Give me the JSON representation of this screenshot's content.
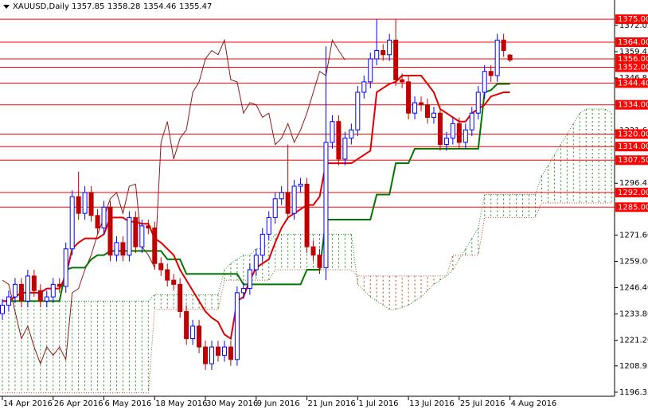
{
  "chart_data": {
    "type": "candlestick",
    "title": "XAUUSD,Daily",
    "header_values": [
      1357.85,
      1358.28,
      1354.46,
      1355.47
    ],
    "categories": [
      "14 Apr 2016",
      null,
      null,
      null,
      null,
      null,
      null,
      null,
      "26 Apr 2016",
      null,
      null,
      null,
      null,
      null,
      null,
      null,
      "6 May 2016",
      null,
      null,
      null,
      null,
      null,
      null,
      null,
      "18 May 2016",
      null,
      null,
      null,
      null,
      null,
      null,
      null,
      "30 May 2016",
      null,
      null,
      null,
      null,
      null,
      null,
      null,
      "9 Jun 2016",
      null,
      null,
      null,
      null,
      null,
      null,
      null,
      "21 Jun 2016",
      null,
      null,
      null,
      null,
      null,
      null,
      null,
      "1 Jul 2016",
      null,
      null,
      null,
      null,
      null,
      null,
      null,
      "13 Jul 2016",
      null,
      null,
      null,
      null,
      null,
      null,
      null,
      "25 Jul 2016",
      null,
      null,
      null,
      null,
      null,
      null,
      null,
      "4 Aug 2016",
      null,
      null,
      null,
      null,
      null,
      null,
      null,
      null,
      null,
      null,
      null,
      null,
      null,
      null,
      null,
      null
    ],
    "up_color": "#0000ff",
    "down_color": "#c00000",
    "open": [
      1234,
      1238,
      1242,
      1248,
      1240,
      1252,
      1245,
      1240,
      1242,
      1248,
      1247,
      1265,
      1290,
      1282,
      1292,
      1281,
      1275,
      1285,
      1262,
      1268,
      1262,
      1280,
      1266,
      1276,
      1275,
      1258,
      1255,
      1250,
      1248,
      1235,
      1222,
      1228,
      1218,
      1210,
      1218,
      1214,
      1218,
      1212,
      1244,
      1246,
      1255,
      1262,
      1272,
      1280,
      1289,
      1292,
      1282,
      1295,
      1296,
      1266,
      1262,
      1256,
      1316,
      1326,
      1308,
      1318,
      1322,
      1340,
      1345,
      1356,
      1360,
      1358,
      1365,
      1346,
      1345,
      1330,
      1335,
      1334,
      1328,
      1330,
      1315,
      1318,
      1325,
      1316,
      1322,
      1330,
      1340,
      1350,
      1348,
      1365,
      1357.85,
      null,
      null,
      null,
      null,
      null,
      null,
      null,
      null,
      null,
      null,
      null,
      null,
      null,
      null,
      null,
      null
    ],
    "high": [
      1241,
      1245,
      1251,
      1251,
      1255,
      1255,
      1248,
      1245,
      1251,
      1251,
      1268,
      1293,
      1302,
      1295,
      1295,
      1284,
      1288,
      1288,
      1271,
      1271,
      1283,
      1283,
      1279,
      1279,
      1278,
      1261,
      1258,
      1253,
      1251,
      1238,
      1231,
      1231,
      1221,
      1221,
      1221,
      1221,
      1221,
      1247,
      1249,
      1258,
      1265,
      1275,
      1283,
      1292,
      1295,
      1315,
      1298,
      1299,
      1299,
      1269,
      1265,
      1362,
      1329,
      1329,
      1321,
      1325,
      1343,
      1348,
      1359,
      1375,
      1363,
      1368,
      1375,
      1349,
      1348,
      1338,
      1338,
      1337,
      1333,
      1333,
      1321,
      1328,
      1328,
      1325,
      1333,
      1343,
      1353,
      1353,
      1368,
      1368,
      1358.28,
      null,
      null,
      null,
      null,
      null,
      null,
      null,
      null,
      null,
      null,
      null,
      null,
      null,
      null,
      null,
      null
    ],
    "low": [
      1231,
      1235,
      1239,
      1237,
      1237,
      1242,
      1237,
      1237,
      1239,
      1244,
      1244,
      1262,
      1279,
      1279,
      1278,
      1272,
      1272,
      1259,
      1259,
      1259,
      1259,
      1263,
      1263,
      1272,
      1255,
      1252,
      1247,
      1245,
      1232,
      1219,
      1219,
      1215,
      1207,
      1207,
      1211,
      1211,
      1209,
      1209,
      1241,
      1243,
      1252,
      1259,
      1269,
      1277,
      1286,
      1279,
      1279,
      1292,
      1263,
      1259,
      1253,
      1250,
      1313,
      1305,
      1305,
      1315,
      1319,
      1337,
      1342,
      1353,
      1355,
      1355,
      1343,
      1342,
      1327,
      1327,
      1331,
      1325,
      1325,
      1312,
      1312,
      1315,
      1313,
      1313,
      1319,
      1327,
      1337,
      1345,
      1345,
      1357,
      1354.46,
      null,
      null,
      null,
      null,
      null,
      null,
      null,
      null,
      null,
      null,
      null,
      null,
      null,
      null,
      null,
      null
    ],
    "close": [
      1238,
      1242,
      1248,
      1240,
      1252,
      1245,
      1240,
      1242,
      1248,
      1247,
      1265,
      1290,
      1282,
      1292,
      1281,
      1275,
      1285,
      1262,
      1268,
      1262,
      1280,
      1266,
      1276,
      1275,
      1258,
      1255,
      1250,
      1248,
      1235,
      1222,
      1228,
      1218,
      1210,
      1218,
      1214,
      1218,
      1212,
      1244,
      1246,
      1255,
      1262,
      1272,
      1280,
      1289,
      1292,
      1282,
      1295,
      1296,
      1266,
      1262,
      1256,
      1316,
      1326,
      1308,
      1318,
      1322,
      1340,
      1345,
      1356,
      1360,
      1358,
      1365,
      1346,
      1345,
      1330,
      1335,
      1334,
      1328,
      1330,
      1315,
      1318,
      1325,
      1316,
      1322,
      1330,
      1340,
      1350,
      1348,
      1365,
      1360,
      1355.47,
      null,
      null,
      null,
      null,
      null,
      null,
      null,
      null,
      null,
      null,
      null,
      null,
      null,
      null,
      null,
      null
    ],
    "tenkan": {
      "color": "#e00000",
      "values": [
        1240,
        1240,
        1242,
        1244,
        1244,
        1244,
        1244,
        1246,
        1246,
        1246,
        1252,
        1265,
        1268,
        1270,
        1270,
        1270,
        1272,
        1280,
        1280,
        1280,
        1278,
        1278,
        1277,
        1277,
        1270,
        1268,
        1265,
        1262,
        1255,
        1250,
        1245,
        1240,
        1235,
        1232,
        1230,
        1224,
        1222,
        1240,
        1242,
        1250,
        1256,
        1258,
        1260,
        1268,
        1275,
        1280,
        1282,
        1284,
        1286,
        1286,
        1290,
        1306,
        1306,
        1306,
        1306,
        1306,
        1308,
        1310,
        1312,
        1340,
        1342,
        1344,
        1345,
        1348,
        1348,
        1348,
        1348,
        1344,
        1340,
        1332,
        1330,
        1328,
        1326,
        1326,
        1330,
        1332,
        1334,
        1338,
        1339,
        1340,
        1340,
        null,
        null,
        null,
        null,
        null,
        null,
        null,
        null,
        null,
        null,
        null,
        null,
        null,
        null,
        null,
        null
      ]
    },
    "kijun": {
      "color": "#007800",
      "values": [
        1240,
        1240,
        1240,
        1240,
        1240,
        1240,
        1240,
        1240,
        1240,
        1240,
        1255,
        1256,
        1256,
        1256,
        1260,
        1262,
        1262,
        1264,
        1264,
        1264,
        1264,
        1264,
        1264,
        1264,
        1264,
        1264,
        1260,
        1260,
        1260,
        1253,
        1253,
        1253,
        1253,
        1253,
        1253,
        1253,
        1253,
        1253,
        1248,
        1248,
        1248,
        1248,
        1248,
        1248,
        1248,
        1248,
        1248,
        1248,
        1255,
        1255,
        1255,
        1279,
        1279,
        1279,
        1279,
        1279,
        1279,
        1279,
        1279,
        1291,
        1291,
        1291,
        1306,
        1306,
        1306,
        1313,
        1313,
        1313,
        1313,
        1313,
        1313,
        1313,
        1313,
        1313,
        1313,
        1313,
        1340,
        1341,
        1344,
        1344,
        1344,
        null,
        null,
        null,
        null,
        null,
        null,
        null,
        null,
        null,
        null,
        null,
        null,
        null,
        null,
        null,
        null
      ]
    },
    "chikou": {
      "color": "#8b1a1a",
      "values": [
        1250,
        1248,
        1235,
        1222,
        1228,
        1218,
        1210,
        1218,
        1214,
        1218,
        1212,
        1244,
        1246,
        1255,
        1262,
        1272,
        1280,
        1289,
        1292,
        1282,
        1295,
        1296,
        1266,
        1262,
        1256,
        1316,
        1326,
        1308,
        1318,
        1322,
        1340,
        1345,
        1356,
        1360,
        1358,
        1365,
        1346,
        1345,
        1330,
        1335,
        1334,
        1328,
        1330,
        1315,
        1318,
        1325,
        1316,
        1322,
        1330,
        1340,
        1350,
        1348,
        1365,
        1360,
        1355.47,
        null,
        null,
        null,
        null,
        null,
        null,
        null,
        null,
        null,
        null,
        null,
        null,
        null,
        null,
        null,
        null,
        null,
        null,
        null,
        null,
        null,
        null,
        null,
        null,
        null,
        null,
        null,
        null,
        null,
        null,
        null,
        null,
        null,
        null,
        null,
        null,
        null,
        null,
        null,
        null,
        null,
        null
      ]
    },
    "span_a": {
      "color": "#228b22",
      "values": [
        1240,
        1240,
        1240,
        1240,
        1240,
        1240,
        1240,
        1240,
        1240,
        1240,
        1240,
        1240,
        1240,
        1240,
        1240,
        1240,
        1240,
        1240,
        1240,
        1240,
        1240,
        1240,
        1240,
        1240,
        1243,
        1243,
        1243,
        1243,
        1243,
        1243,
        1243,
        1243,
        1243,
        1243,
        1243,
        1255,
        1258,
        1260,
        1262,
        1262,
        1265,
        1265,
        1268,
        1272,
        1272,
        1272,
        1272,
        1272,
        1272,
        1272,
        1272,
        1272,
        1272,
        1272,
        1272,
        1272,
        1248,
        1245,
        1242,
        1240,
        1238,
        1236,
        1236,
        1237,
        1238,
        1240,
        1242,
        1245,
        1248,
        1250,
        1252,
        1255,
        1260,
        1265,
        1270,
        1275,
        1291,
        1291,
        1291,
        1291,
        1291,
        1291,
        1291,
        1291,
        1291,
        1300,
        1305,
        1310,
        1315,
        1320,
        1325,
        1330,
        1332,
        1332,
        1332,
        1332,
        1330
      ]
    },
    "span_b": {
      "color": "#b5472a",
      "values": [
        1196,
        1196,
        1196,
        1196,
        1196,
        1196,
        1196,
        1196,
        1196,
        1196,
        1196,
        1196,
        1196,
        1196,
        1196,
        1196,
        1196,
        1196,
        1196,
        1196,
        1196,
        1196,
        1196,
        1196,
        1236,
        1236,
        1236,
        1236,
        1236,
        1236,
        1236,
        1236,
        1236,
        1236,
        1236,
        1250,
        1250,
        1250,
        1250,
        1250,
        1250,
        1250,
        1250,
        1255,
        1255,
        1255,
        1255,
        1255,
        1255,
        1255,
        1255,
        1255,
        1255,
        1255,
        1255,
        1255,
        1252,
        1252,
        1252,
        1252,
        1252,
        1252,
        1252,
        1252,
        1252,
        1252,
        1252,
        1252,
        1252,
        1252,
        1252,
        1262,
        1262,
        1262,
        1262,
        1262,
        1280,
        1280,
        1280,
        1280,
        1280,
        1280,
        1280,
        1280,
        1280,
        1287,
        1287,
        1287,
        1287,
        1287,
        1287,
        1287,
        1287,
        1287,
        1287,
        1287,
        1287
      ]
    },
    "levels_color": "#ff0000",
    "levels": [
      {
        "value": 1375,
        "label": "1375.00"
      },
      {
        "value": 1364,
        "label": "1364.00"
      },
      {
        "value": 1356,
        "label": "1356.00"
      },
      {
        "value": 1352,
        "label": "1352.00"
      },
      {
        "value": 1344.4,
        "label": "1344.40"
      },
      {
        "value": 1334,
        "label": "1334.00"
      },
      {
        "value": 1320,
        "label": "1320.00"
      },
      {
        "value": 1314,
        "label": "1314.00"
      },
      {
        "value": 1307.5,
        "label": "1307.50"
      },
      {
        "value": 1292,
        "label": "1292.00"
      },
      {
        "value": 1285,
        "label": "1285.00"
      }
    ],
    "ylim": [
      1194.4,
      1384.2
    ],
    "yticks": [
      1372.05,
      1359.45,
      1346.85,
      1321.65,
      1296.45,
      {
        "value": 1271.6,
        "label": "1271.60"
      },
      {
        "value": 1259,
        "label": "1259.00"
      },
      {
        "value": 1246.4,
        "label": "1246.40"
      },
      {
        "value": 1233.8,
        "label": "1233.80"
      },
      {
        "value": 1221.2,
        "label": "1221.20"
      },
      1208.95,
      1196.35
    ]
  }
}
